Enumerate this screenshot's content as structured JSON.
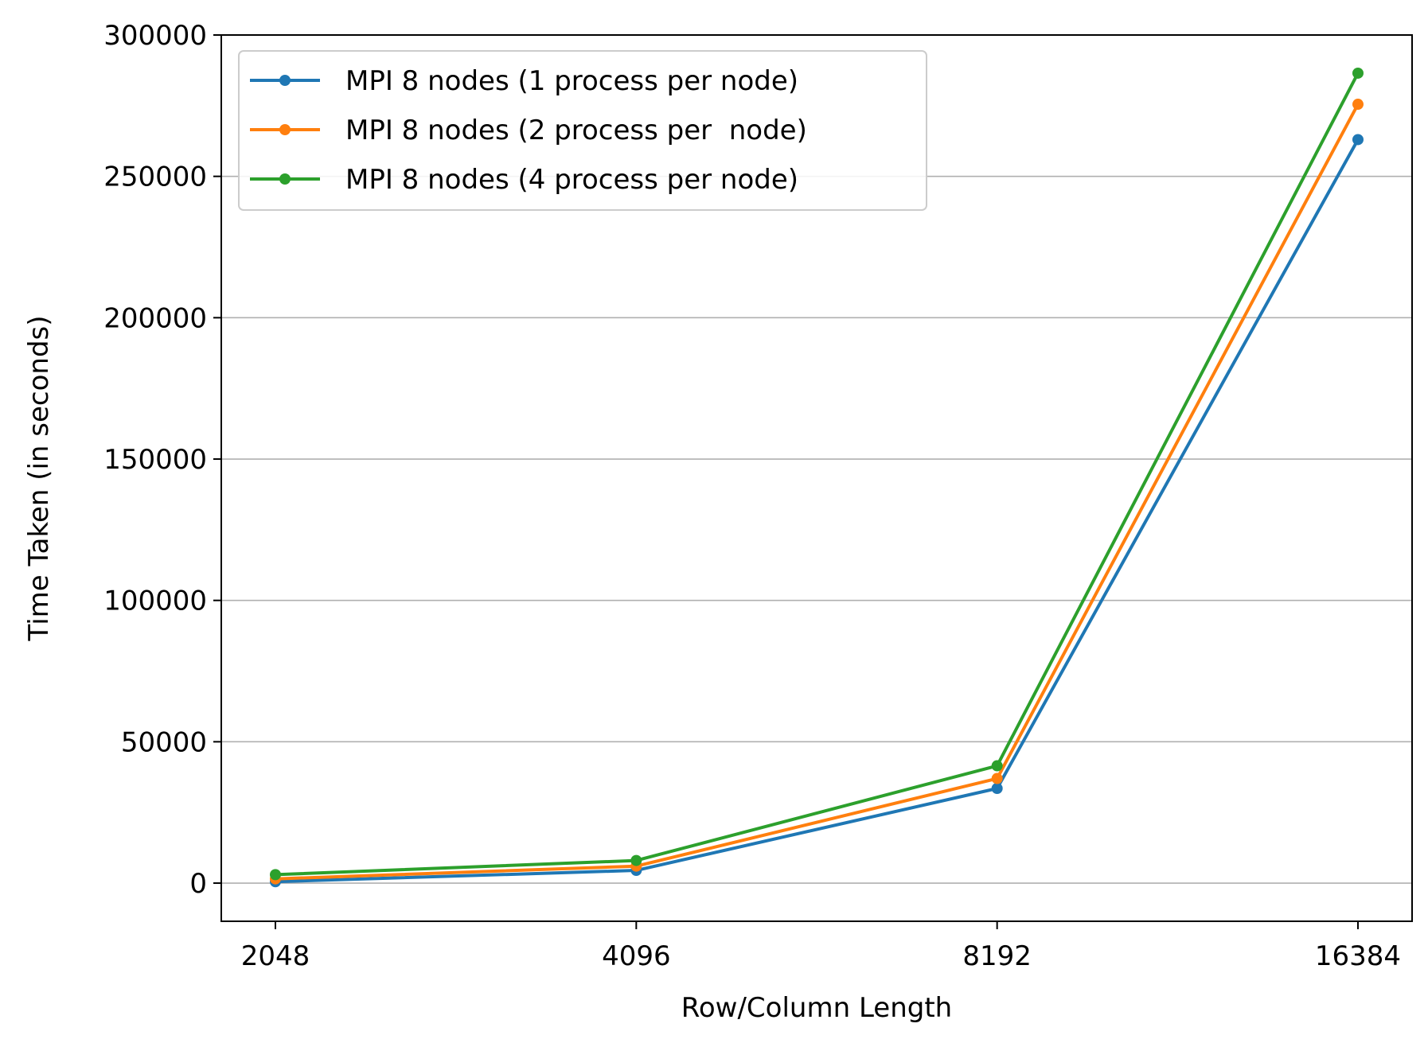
{
  "chart_data": {
    "type": "line",
    "title": "",
    "xlabel": "Row/Column Length",
    "ylabel": "Time Taken (in seconds)",
    "categories": [
      "2048",
      "4096",
      "8192",
      "16384"
    ],
    "yticks": [
      "0",
      "50000",
      "100000",
      "150000",
      "200000",
      "250000",
      "300000"
    ],
    "ylim": [
      -13500,
      300000
    ],
    "grid": "horizontal",
    "legend_position": "top-left",
    "series": [
      {
        "name": "MPI 8 nodes (1 process per node)",
        "color": "#1f77b4",
        "values": [
          500,
          4500,
          33500,
          263000
        ]
      },
      {
        "name": "MPI 8 nodes (2 process per  node)",
        "color": "#ff7f0e",
        "values": [
          1500,
          6000,
          37000,
          275500
        ]
      },
      {
        "name": "MPI 8 nodes (4 process per node)",
        "color": "#2ca02c",
        "values": [
          3000,
          8000,
          41500,
          286500
        ]
      }
    ]
  }
}
